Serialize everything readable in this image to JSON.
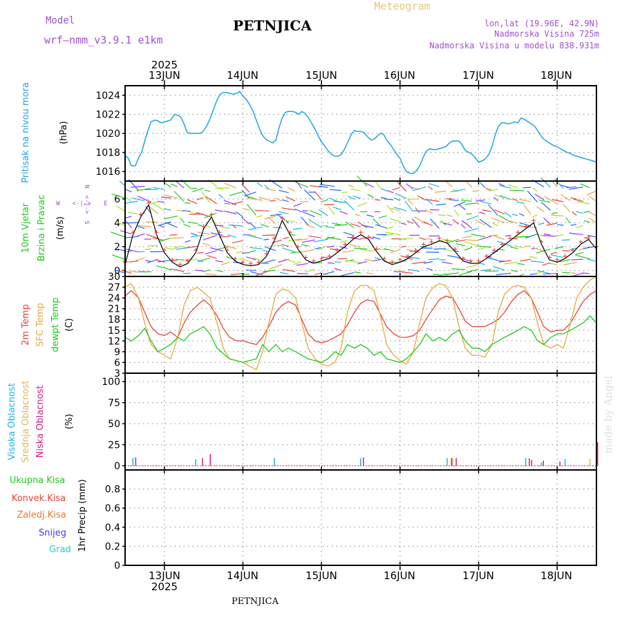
{
  "header": {
    "model_label": "Model",
    "model_name": "wrf—nmm_v3.9.1 e1km",
    "station": "PETNJICA",
    "product": "Meteogram",
    "lonlat": "lon,lat (19.96E, 42.9N)",
    "elev": "Nadmorska Visina 725m",
    "elev_model": "Nadmorska Visina u modelu 838.931m",
    "footer_station": "PETNJICA",
    "credit": "made by Angel"
  },
  "colors": {
    "pressure": "#1ea5e6",
    "temp2m": "#e8413c",
    "sfc": "#e6a83c",
    "dewpt": "#1ec81e",
    "high_cloud": "#18b4e6",
    "mid_cloud": "#e6b450",
    "low_cloud": "#d21e82",
    "purple_text": "#a050d2",
    "gold_text": "#e6c878"
  },
  "time_axis": {
    "year": "2025",
    "days": [
      "13JUN",
      "14JUN",
      "15JUN",
      "16JUN",
      "17JUN",
      "18JUN"
    ]
  },
  "chart_data": [
    {
      "type": "line",
      "name": "pressure",
      "ylabel": "Pritisak na nivou mora",
      "unit": "(hPa)",
      "ylim": [
        1015,
        1025
      ],
      "yticks": [
        1016,
        1018,
        1020,
        1022,
        1024
      ],
      "grid": true,
      "series": [
        {
          "x": [
            12.5,
            12.54,
            12.58,
            12.63,
            12.67,
            12.71,
            12.75,
            12.79,
            12.83,
            12.88,
            12.92,
            12.96,
            13.0,
            13.04,
            13.08,
            13.13,
            13.17,
            13.21,
            13.25,
            13.29,
            13.33,
            13.38,
            13.42,
            13.46,
            13.5,
            13.54,
            13.58,
            13.63,
            13.67,
            13.71,
            13.75,
            13.79,
            13.83,
            13.88,
            13.92,
            13.96,
            14.0,
            14.04,
            14.08,
            14.13,
            14.17,
            14.21,
            14.25,
            14.29,
            14.33,
            14.38,
            14.42,
            14.46,
            14.5,
            14.54,
            14.58,
            14.63,
            14.67,
            14.71,
            14.75,
            14.79,
            14.83,
            14.88,
            14.92,
            14.96,
            15.0,
            15.04,
            15.08,
            15.13,
            15.17,
            15.21,
            15.25,
            15.29,
            15.33,
            15.38,
            15.42,
            15.46,
            15.5,
            15.54,
            15.58,
            15.63,
            15.67,
            15.71,
            15.75,
            15.79,
            15.83,
            15.88,
            15.92,
            15.96,
            16.0,
            16.04,
            16.08,
            16.13,
            16.17,
            16.21,
            16.25,
            16.29,
            16.33,
            16.38,
            16.42,
            16.46,
            16.5,
            16.54,
            16.58,
            16.63,
            16.67,
            16.71,
            16.75,
            16.79,
            16.83,
            16.88,
            16.92,
            16.96,
            17.0,
            17.04,
            17.08,
            17.13,
            17.17,
            17.21,
            17.25,
            17.29,
            17.33,
            17.38,
            17.42,
            17.46,
            17.5,
            17.54,
            17.58,
            17.63,
            17.67,
            17.71,
            17.75,
            17.79,
            17.83,
            17.88,
            17.92,
            17.96,
            18.0,
            18.04,
            18.08,
            18.13,
            18.17,
            18.21,
            18.25,
            18.29,
            18.33,
            18.38,
            18.42,
            18.46,
            18.5
          ],
          "values": [
            1017.7,
            1017.4,
            1016.6,
            1016.6,
            1017.4,
            1018.0,
            1019.2,
            1020.3,
            1021.2,
            1021.4,
            1021.3,
            1021.1,
            1021.2,
            1021.3,
            1021.4,
            1022.0,
            1021.9,
            1021.7,
            1021.0,
            1020.1,
            1020.0,
            1020.0,
            1020.0,
            1020.0,
            1020.3,
            1020.8,
            1021.5,
            1022.6,
            1023.5,
            1024.1,
            1024.3,
            1024.3,
            1024.2,
            1024.1,
            1024.2,
            1024.4,
            1023.9,
            1023.6,
            1023.1,
            1022.3,
            1021.4,
            1020.5,
            1019.8,
            1019.4,
            1019.2,
            1019.0,
            1019.3,
            1020.6,
            1021.6,
            1022.2,
            1022.3,
            1022.3,
            1022.2,
            1022.0,
            1022.3,
            1022.1,
            1021.7,
            1021.0,
            1020.4,
            1019.7,
            1019.1,
            1018.7,
            1018.2,
            1017.8,
            1017.6,
            1017.6,
            1017.8,
            1018.3,
            1019.0,
            1019.9,
            1020.3,
            1020.2,
            1020.2,
            1020.1,
            1019.7,
            1019.3,
            1019.4,
            1019.7,
            1020.0,
            1019.9,
            1019.3,
            1018.8,
            1018.3,
            1017.8,
            1017.4,
            1016.6,
            1016.0,
            1015.8,
            1015.8,
            1016.1,
            1016.6,
            1017.4,
            1018.1,
            1018.4,
            1018.3,
            1018.3,
            1018.4,
            1018.5,
            1018.6,
            1019.0,
            1019.2,
            1019.2,
            1019.2,
            1018.8,
            1018.2,
            1018.0,
            1017.8,
            1017.4,
            1017.0,
            1017.1,
            1017.3,
            1017.8,
            1018.6,
            1019.8,
            1020.7,
            1021.1,
            1021.1,
            1021.0,
            1021.1,
            1021.2,
            1021.1,
            1021.6,
            1021.5,
            1021.2,
            1021.0,
            1020.8,
            1020.3,
            1019.8,
            1019.4,
            1019.1,
            1018.9,
            1018.7,
            1018.6,
            1018.4,
            1018.2,
            1018.0,
            1017.9,
            1017.7,
            1017.6,
            1017.5,
            1017.4,
            1017.3,
            1017.2,
            1017.1,
            1017.0
          ]
        }
      ]
    },
    {
      "type": "line",
      "name": "wind",
      "ylabel": "10m Vjetar Brzina i Pravac",
      "unit": "(m/s)",
      "ylim": [
        -0.5,
        7.5
      ],
      "yticks": [
        0,
        2,
        4,
        6
      ],
      "compass": [
        "N",
        "S",
        "W",
        "E"
      ],
      "grid": true,
      "series": [
        {
          "x": [
            12.5,
            12.6,
            12.7,
            12.8,
            12.9,
            13.0,
            13.1,
            13.2,
            13.3,
            13.4,
            13.5,
            13.6,
            13.7,
            13.8,
            13.9,
            14.0,
            14.1,
            14.2,
            14.3,
            14.4,
            14.5,
            14.6,
            14.7,
            14.8,
            14.9,
            15.0,
            15.1,
            15.2,
            15.3,
            15.4,
            15.5,
            15.6,
            15.7,
            15.8,
            15.9,
            16.0,
            16.1,
            16.2,
            16.3,
            16.4,
            16.5,
            16.6,
            16.7,
            16.8,
            16.9,
            17.0,
            17.1,
            17.2,
            17.3,
            17.4,
            17.5,
            17.6,
            17.7,
            17.8,
            17.9,
            18.0,
            18.1,
            18.2,
            18.3,
            18.4,
            18.5
          ],
          "values": [
            0.5,
            3.0,
            4.5,
            5.5,
            3.0,
            1.5,
            0.7,
            0.3,
            0.6,
            1.5,
            3.5,
            4.5,
            3.0,
            1.5,
            0.8,
            0.5,
            0.4,
            0.5,
            1.2,
            2.5,
            4.2,
            3.0,
            1.8,
            0.9,
            0.6,
            0.8,
            1.0,
            1.5,
            2.0,
            2.6,
            3.0,
            2.6,
            1.6,
            0.8,
            0.5,
            0.7,
            1.0,
            1.5,
            2.0,
            2.2,
            2.5,
            2.3,
            1.6,
            0.8,
            0.6,
            0.6,
            1.0,
            1.5,
            2.0,
            2.5,
            3.0,
            3.5,
            4.0,
            2.2,
            0.9,
            0.7,
            1.0,
            1.5,
            2.2,
            2.6,
            1.8
          ]
        }
      ]
    },
    {
      "type": "line",
      "name": "temperature",
      "ylabel": "2m Temp / SFC Temp / dewpt Temp",
      "unit": "(C)",
      "ylim": [
        3,
        30
      ],
      "yticks": [
        3,
        6,
        9,
        12,
        15,
        18,
        21,
        24,
        27,
        30
      ],
      "grid": true,
      "series": [
        {
          "name": "2m Temp",
          "x": [
            12.5,
            12.58,
            12.67,
            12.75,
            12.83,
            12.92,
            13.0,
            13.08,
            13.17,
            13.25,
            13.33,
            13.42,
            13.5,
            13.58,
            13.67,
            13.75,
            13.83,
            13.92,
            14.0,
            14.08,
            14.17,
            14.25,
            14.33,
            14.42,
            14.5,
            14.58,
            14.67,
            14.75,
            14.83,
            14.92,
            15.0,
            15.08,
            15.17,
            15.25,
            15.33,
            15.42,
            15.5,
            15.58,
            15.67,
            15.75,
            15.83,
            15.92,
            16.0,
            16.08,
            16.17,
            16.25,
            16.33,
            16.42,
            16.5,
            16.58,
            16.67,
            16.75,
            16.83,
            16.92,
            17.0,
            17.08,
            17.17,
            17.25,
            17.33,
            17.42,
            17.5,
            17.58,
            17.67,
            17.75,
            17.83,
            17.92,
            18.0,
            18.08,
            18.17,
            18.25,
            18.33,
            18.42,
            18.5
          ],
          "values": [
            24.5,
            26,
            24,
            20,
            16,
            14,
            13.5,
            14.5,
            13,
            17,
            20,
            22,
            23.5,
            22,
            19,
            15.5,
            13,
            12,
            12,
            11.5,
            11,
            13,
            16,
            20,
            22,
            23,
            22,
            18,
            14,
            12,
            11.5,
            12,
            13,
            14,
            16.5,
            20,
            22.5,
            23.5,
            23,
            19.5,
            16,
            14,
            13,
            13,
            13.5,
            15,
            18,
            21,
            23.5,
            24.5,
            24,
            21,
            17.5,
            16,
            16,
            16,
            17,
            18,
            20,
            23,
            25,
            26,
            24,
            20,
            16,
            14.5,
            15,
            15,
            17,
            20,
            23,
            25,
            26
          ]
        },
        {
          "name": "SFC Temp",
          "x": [
            12.5,
            12.58,
            12.67,
            12.75,
            12.83,
            12.92,
            13.0,
            13.08,
            13.17,
            13.25,
            13.33,
            13.42,
            13.5,
            13.58,
            13.67,
            13.75,
            13.83,
            13.92,
            14.0,
            14.08,
            14.17,
            14.25,
            14.33,
            14.42,
            14.5,
            14.58,
            14.67,
            14.75,
            14.83,
            14.92,
            15.0,
            15.08,
            15.17,
            15.25,
            15.33,
            15.42,
            15.5,
            15.58,
            15.67,
            15.75,
            15.83,
            15.92,
            16.0,
            16.08,
            16.17,
            16.25,
            16.33,
            16.42,
            16.5,
            16.58,
            16.67,
            16.75,
            16.83,
            16.92,
            17.0,
            17.08,
            17.17,
            17.25,
            17.33,
            17.42,
            17.5,
            17.58,
            17.67,
            17.75,
            17.83,
            17.92,
            18.0,
            18.08,
            18.17,
            18.25,
            18.33,
            18.42,
            18.5
          ],
          "values": [
            27,
            28,
            24,
            17,
            11,
            9,
            8,
            7,
            13,
            22,
            26,
            27,
            25.5,
            24,
            17,
            10,
            7,
            6.5,
            6,
            5,
            4,
            9,
            17,
            25,
            26.5,
            26,
            24,
            17,
            10,
            7,
            5.5,
            5,
            6,
            10,
            20,
            26,
            27.5,
            27.5,
            26,
            19,
            11,
            8,
            6.5,
            5.5,
            9,
            17,
            24,
            27,
            28,
            27.5,
            24,
            16,
            10,
            8,
            8,
            7.5,
            11,
            20,
            25,
            27,
            27.5,
            27,
            24,
            17,
            11,
            10,
            11,
            10,
            17,
            24,
            27,
            29,
            30
          ]
        },
        {
          "name": "dewpt Temp",
          "x": [
            12.5,
            12.58,
            12.67,
            12.75,
            12.83,
            12.92,
            13.0,
            13.08,
            13.17,
            13.25,
            13.33,
            13.42,
            13.5,
            13.58,
            13.67,
            13.75,
            13.83,
            13.92,
            14.0,
            14.08,
            14.17,
            14.25,
            14.33,
            14.42,
            14.5,
            14.58,
            14.67,
            14.75,
            14.83,
            14.92,
            15.0,
            15.08,
            15.17,
            15.25,
            15.33,
            15.42,
            15.5,
            15.58,
            15.67,
            15.75,
            15.83,
            15.92,
            16.0,
            16.08,
            16.17,
            16.25,
            16.33,
            16.42,
            16.5,
            16.58,
            16.67,
            16.75,
            16.83,
            16.92,
            17.0,
            17.08,
            17.17,
            17.25,
            17.33,
            17.42,
            17.5,
            17.58,
            17.67,
            17.75,
            17.83,
            17.92,
            18.0,
            18.08,
            18.17,
            18.25,
            18.33,
            18.42,
            18.5
          ],
          "values": [
            13,
            12,
            13.5,
            15.5,
            12,
            9,
            10,
            11,
            13,
            12,
            14,
            15,
            16,
            14,
            10,
            8.5,
            7,
            6.5,
            6,
            6.5,
            7,
            11,
            9,
            11,
            9,
            10,
            9,
            8,
            7,
            6.5,
            6,
            7,
            9,
            8,
            11,
            10,
            11,
            10,
            8,
            9,
            7,
            6.5,
            6,
            7,
            9,
            11,
            14,
            12,
            13,
            12,
            14,
            15,
            12,
            10,
            10,
            9,
            11,
            12,
            13,
            14,
            15,
            16,
            15,
            12,
            11,
            13,
            14,
            14,
            15,
            16,
            17,
            19,
            17
          ]
        }
      ]
    },
    {
      "type": "bar",
      "name": "cloud",
      "ylabel": "Visoka Oblacnost / Srednja Oblacnost / Niska Oblacnost",
      "unit": "(%)",
      "ylim": [
        -5,
        110
      ],
      "yticks": [
        0,
        25,
        50,
        75,
        100
      ],
      "grid": true,
      "series": [
        {
          "name": "Visoka Oblacnost",
          "x": [
            12.6,
            13.4,
            14.4,
            15.5,
            16.6,
            17.6,
            17.8,
            18.1
          ],
          "values": [
            9,
            8,
            9,
            9,
            9,
            9,
            4,
            8
          ]
        },
        {
          "name": "Srednja Oblacnost",
          "x": [
            16.65,
            18.4
          ],
          "values": [
            9,
            8
          ]
        },
        {
          "name": "Niska Oblacnost",
          "x": [
            12.6,
            13.45,
            13.55,
            15.5,
            16.62,
            16.68,
            17.61,
            17.64,
            17.79,
            18.0,
            18.48
          ],
          "values": [
            10,
            9,
            14,
            10,
            9,
            9,
            9,
            7,
            6,
            5,
            28
          ]
        }
      ]
    },
    {
      "type": "bar",
      "name": "precip",
      "ylabel": "1hr Precip",
      "unit": "(mm)",
      "ylim": [
        0,
        1
      ],
      "yticks": [
        0,
        0.2,
        0.4,
        0.6,
        0.8
      ],
      "legend": [
        "Ukupna Kisa",
        "Konvek.Kisa",
        "Zaledj.Kisa",
        "Snijeg",
        "Grad"
      ],
      "grid": true,
      "series": [
        {
          "name": "Ukupna Kisa",
          "x": [],
          "values": []
        }
      ]
    }
  ]
}
